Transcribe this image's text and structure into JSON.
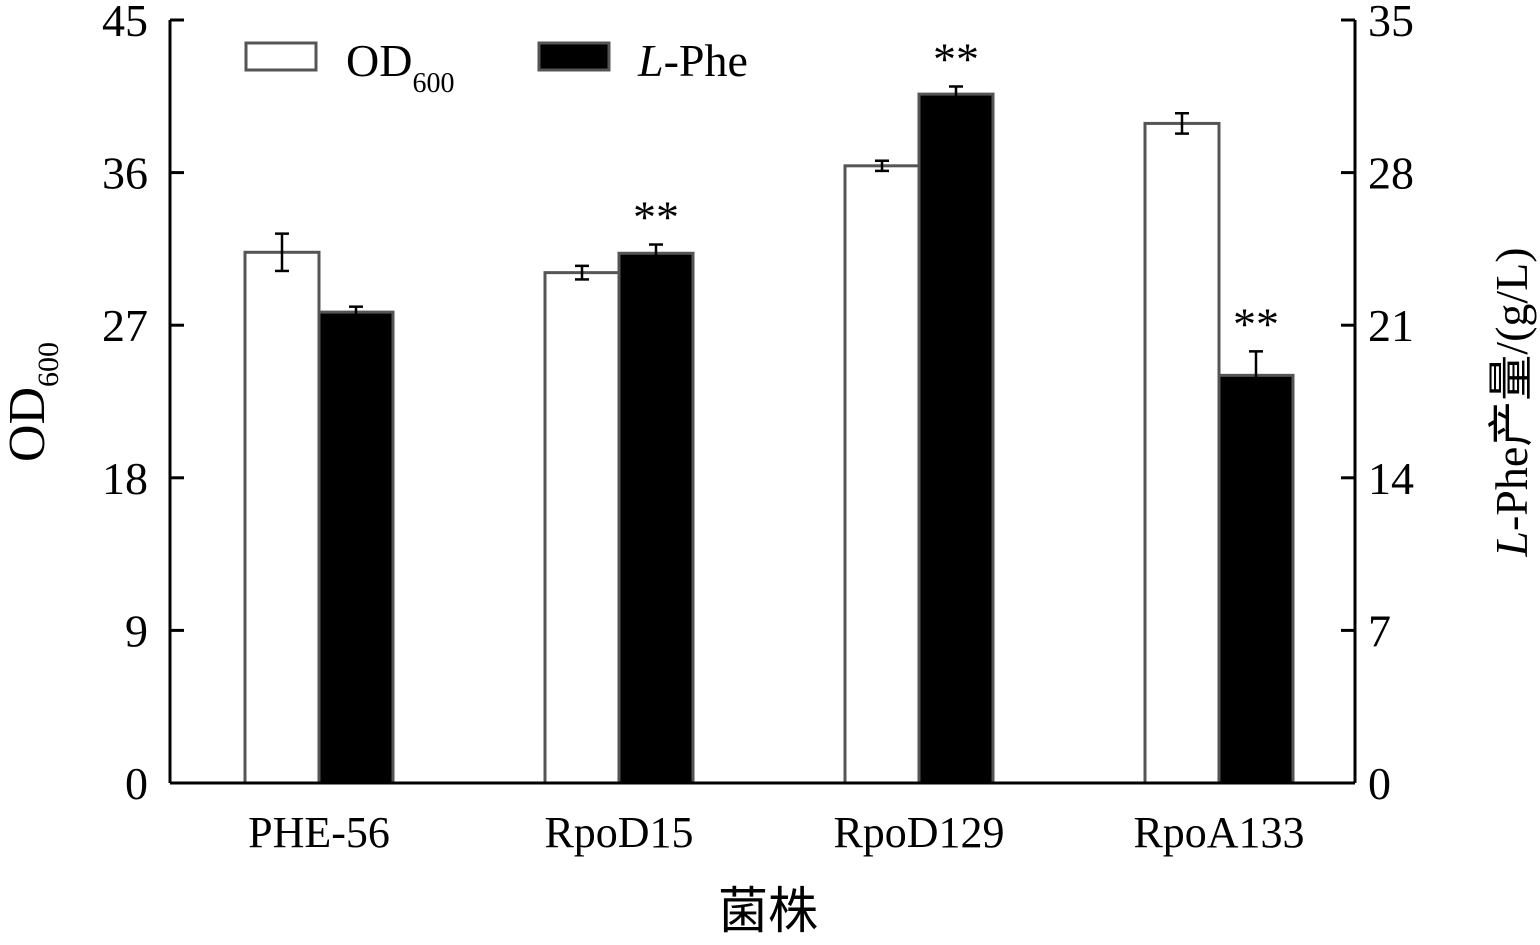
{
  "chart_data": {
    "type": "bar",
    "categories": [
      "PHE-56",
      "RpoD15",
      "RpoD129",
      "RpoA133"
    ],
    "xlabel": "菌株",
    "ylabel_left": {
      "main": "OD",
      "sub": "600"
    },
    "ylabel_right": {
      "italic": "L",
      "rest": "-Phe产量/(g/L)"
    },
    "left_axis": {
      "min": 0,
      "max": 45,
      "ticks": [
        "0",
        "9",
        "18",
        "27",
        "36",
        "45"
      ]
    },
    "right_axis": {
      "min": 0,
      "max": 35,
      "ticks": [
        "0",
        "7",
        "14",
        "21",
        "28",
        "35"
      ]
    },
    "grid": false,
    "legend_position": "top-left",
    "series": [
      {
        "name": "OD600",
        "legend": {
          "main": "OD",
          "sub": "600"
        },
        "axis": "left",
        "values": [
          31.3,
          30.1,
          36.4,
          38.9
        ],
        "errors": [
          1.1,
          0.4,
          0.3,
          0.6
        ],
        "fill": "#ffffff",
        "annotations": [
          "",
          "",
          "",
          ""
        ]
      },
      {
        "name": "L-Phe",
        "legend": {
          "italic": "L",
          "rest": "-Phe"
        },
        "axis": "right",
        "values": [
          21.6,
          24.3,
          31.6,
          18.7
        ],
        "errors": [
          0.25,
          0.4,
          0.35,
          1.1
        ],
        "fill": "#000000",
        "annotations": [
          "",
          "**",
          "**",
          "**"
        ]
      }
    ],
    "colors": {
      "axis": "#000000",
      "bar_stroke": "#555555"
    }
  }
}
